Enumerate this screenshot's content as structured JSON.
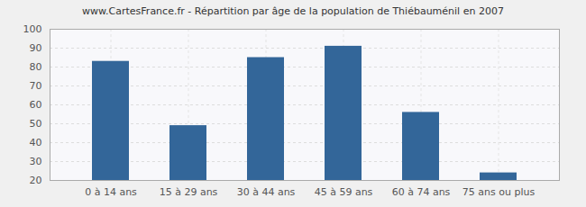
{
  "chart_data": {
    "type": "bar",
    "title": "www.CartesFrance.fr - Répartition par âge de la population de Thiébauménil en 2007",
    "categories": [
      "0 à 14 ans",
      "15 à 29 ans",
      "30 à 44 ans",
      "45 à 59 ans",
      "60 à 74 ans",
      "75 ans ou plus"
    ],
    "values": [
      83,
      49,
      85,
      91,
      56,
      24
    ],
    "color": "#336699",
    "ylim": [
      20,
      100
    ],
    "yticks": [
      20,
      30,
      40,
      50,
      60,
      70,
      80,
      90,
      100
    ],
    "grid": true
  }
}
